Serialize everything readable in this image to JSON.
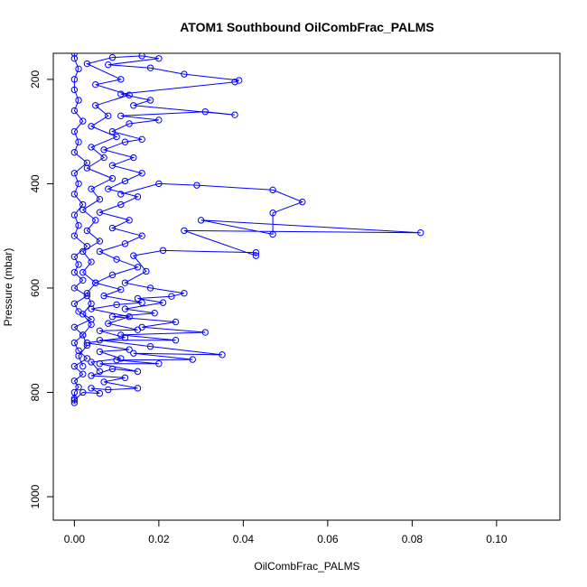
{
  "chart_data": {
    "type": "scatter",
    "title": "ATOM1 Southbound OilCombFrac_PALMS",
    "xlabel": "OilCombFrac_PALMS",
    "ylabel": "Pressure (mbar)",
    "xlim": [
      -0.005,
      0.115
    ],
    "ylim": [
      1045,
      150
    ],
    "y_reversed": true,
    "grid": false,
    "x_ticks": [
      0.0,
      0.02,
      0.04,
      0.06,
      0.08,
      0.1
    ],
    "x_tick_labels": [
      "0.00",
      "0.02",
      "0.04",
      "0.06",
      "0.08",
      "0.10"
    ],
    "y_ticks": [
      200,
      400,
      600,
      800,
      1000
    ],
    "y_tick_labels": [
      "200",
      "400",
      "600",
      "800",
      "1000"
    ],
    "series_color": "#0000ff",
    "marker": "open-circle",
    "series": [
      {
        "points": [
          [
            0.0,
            820
          ],
          [
            0.0,
            812
          ],
          [
            0.0,
            800
          ],
          [
            0.001,
            790
          ],
          [
            0.0,
            778
          ],
          [
            0.002,
            765
          ],
          [
            0.0,
            750
          ],
          [
            0.003,
            735
          ],
          [
            0.001,
            720
          ],
          [
            0.0,
            705
          ],
          [
            0.002,
            690
          ],
          [
            0.0,
            675
          ],
          [
            0.004,
            660
          ],
          [
            0.001,
            645
          ],
          [
            0.0,
            630
          ],
          [
            0.003,
            615
          ],
          [
            0.0,
            600
          ],
          [
            0.002,
            585
          ],
          [
            0.0,
            570
          ],
          [
            0.001,
            555
          ],
          [
            0.0,
            540
          ],
          [
            0.003,
            520
          ],
          [
            0.0,
            500
          ],
          [
            0.001,
            480
          ],
          [
            0.0,
            460
          ],
          [
            0.002,
            440
          ],
          [
            0.0,
            420
          ],
          [
            0.001,
            400
          ],
          [
            0.0,
            380
          ],
          [
            0.003,
            360
          ],
          [
            0.0,
            340
          ],
          [
            0.001,
            320
          ],
          [
            0.0,
            300
          ],
          [
            0.002,
            280
          ],
          [
            0.0,
            260
          ],
          [
            0.001,
            240
          ],
          [
            0.0,
            220
          ],
          [
            0.0,
            200
          ],
          [
            0.001,
            180
          ],
          [
            0.0,
            160
          ],
          [
            0.0,
            150
          ]
        ]
      },
      {
        "points": [
          [
            0.0,
            815
          ],
          [
            0.002,
            800
          ],
          [
            0.006,
            802
          ],
          [
            0.004,
            792
          ],
          [
            0.008,
            795
          ],
          [
            0.015,
            792
          ],
          [
            0.007,
            780
          ],
          [
            0.012,
            772
          ],
          [
            0.004,
            768
          ],
          [
            0.009,
            755
          ],
          [
            0.015,
            760
          ],
          [
            0.006,
            745
          ],
          [
            0.02,
            745
          ],
          [
            0.01,
            738
          ],
          [
            0.028,
            737
          ],
          [
            0.014,
            725
          ],
          [
            0.035,
            728
          ],
          [
            0.018,
            712
          ],
          [
            0.006,
            700
          ],
          [
            0.024,
            700
          ],
          [
            0.011,
            690
          ],
          [
            0.031,
            685
          ],
          [
            0.016,
            675
          ],
          [
            0.024,
            665
          ],
          [
            0.009,
            655
          ],
          [
            0.019,
            648
          ],
          [
            0.012,
            640
          ],
          [
            0.021,
            628
          ],
          [
            0.015,
            620
          ],
          [
            0.023,
            616
          ],
          [
            0.026,
            610
          ],
          [
            0.018,
            600
          ],
          [
            0.012,
            590
          ],
          [
            0.017,
            568
          ],
          [
            0.014,
            538
          ],
          [
            0.021,
            528
          ],
          [
            0.043,
            532
          ],
          [
            0.043,
            538
          ],
          [
            0.026,
            490
          ],
          [
            0.082,
            494
          ],
          [
            0.03,
            470
          ],
          [
            0.047,
            497
          ],
          [
            0.047,
            456
          ],
          [
            0.054,
            435
          ],
          [
            0.047,
            412
          ],
          [
            0.029,
            403
          ],
          [
            0.02,
            400
          ],
          [
            0.011,
            420
          ]
        ]
      },
      {
        "points": [
          [
            0.006,
            760
          ],
          [
            0.004,
            742
          ],
          [
            0.011,
            735
          ],
          [
            0.006,
            722
          ],
          [
            0.013,
            718
          ],
          [
            0.003,
            705
          ],
          [
            0.012,
            695
          ],
          [
            0.006,
            682
          ],
          [
            0.015,
            680
          ],
          [
            0.008,
            668
          ],
          [
            0.013,
            655
          ],
          [
            0.004,
            640
          ],
          [
            0.01,
            632
          ],
          [
            0.016,
            628
          ],
          [
            0.007,
            615
          ],
          [
            0.011,
            603
          ],
          [
            0.005,
            590
          ],
          [
            0.009,
            575
          ],
          [
            0.015,
            560
          ],
          [
            0.01,
            545
          ],
          [
            0.006,
            530
          ],
          [
            0.012,
            515
          ],
          [
            0.016,
            500
          ],
          [
            0.009,
            485
          ],
          [
            0.013,
            470
          ],
          [
            0.006,
            455
          ],
          [
            0.011,
            440
          ],
          [
            0.015,
            425
          ],
          [
            0.008,
            410
          ],
          [
            0.012,
            395
          ],
          [
            0.016,
            380
          ],
          [
            0.009,
            365
          ],
          [
            0.014,
            350
          ],
          [
            0.007,
            335
          ],
          [
            0.012,
            320
          ],
          [
            0.016,
            315
          ],
          [
            0.009,
            300
          ],
          [
            0.013,
            285
          ],
          [
            0.02,
            278
          ],
          [
            0.011,
            270
          ],
          [
            0.031,
            262
          ],
          [
            0.038,
            268
          ],
          [
            0.014,
            250
          ],
          [
            0.018,
            240
          ],
          [
            0.011,
            228
          ],
          [
            0.038,
            205
          ],
          [
            0.039,
            202
          ],
          [
            0.026,
            190
          ],
          [
            0.018,
            178
          ],
          [
            0.008,
            172
          ],
          [
            0.02,
            160
          ],
          [
            0.016,
            155
          ],
          [
            0.009,
            158
          ],
          [
            0.003,
            170
          ],
          [
            0.011,
            200
          ],
          [
            0.005,
            210
          ],
          [
            0.013,
            230
          ],
          [
            0.005,
            250
          ],
          [
            0.008,
            270
          ],
          [
            0.004,
            290
          ],
          [
            0.01,
            310
          ],
          [
            0.004,
            330
          ],
          [
            0.007,
            350
          ],
          [
            0.003,
            370
          ],
          [
            0.009,
            390
          ],
          [
            0.004,
            410
          ],
          [
            0.006,
            430
          ],
          [
            0.002,
            450
          ],
          [
            0.005,
            470
          ],
          [
            0.003,
            490
          ],
          [
            0.006,
            510
          ],
          [
            0.002,
            530
          ],
          [
            0.004,
            550
          ],
          [
            0.002,
            570
          ],
          [
            0.005,
            590
          ],
          [
            0.003,
            610
          ],
          [
            0.004,
            630
          ],
          [
            0.002,
            650
          ],
          [
            0.004,
            670
          ],
          [
            0.002,
            690
          ],
          [
            0.003,
            710
          ],
          [
            0.001,
            730
          ],
          [
            0.002,
            750
          ]
        ]
      }
    ]
  }
}
